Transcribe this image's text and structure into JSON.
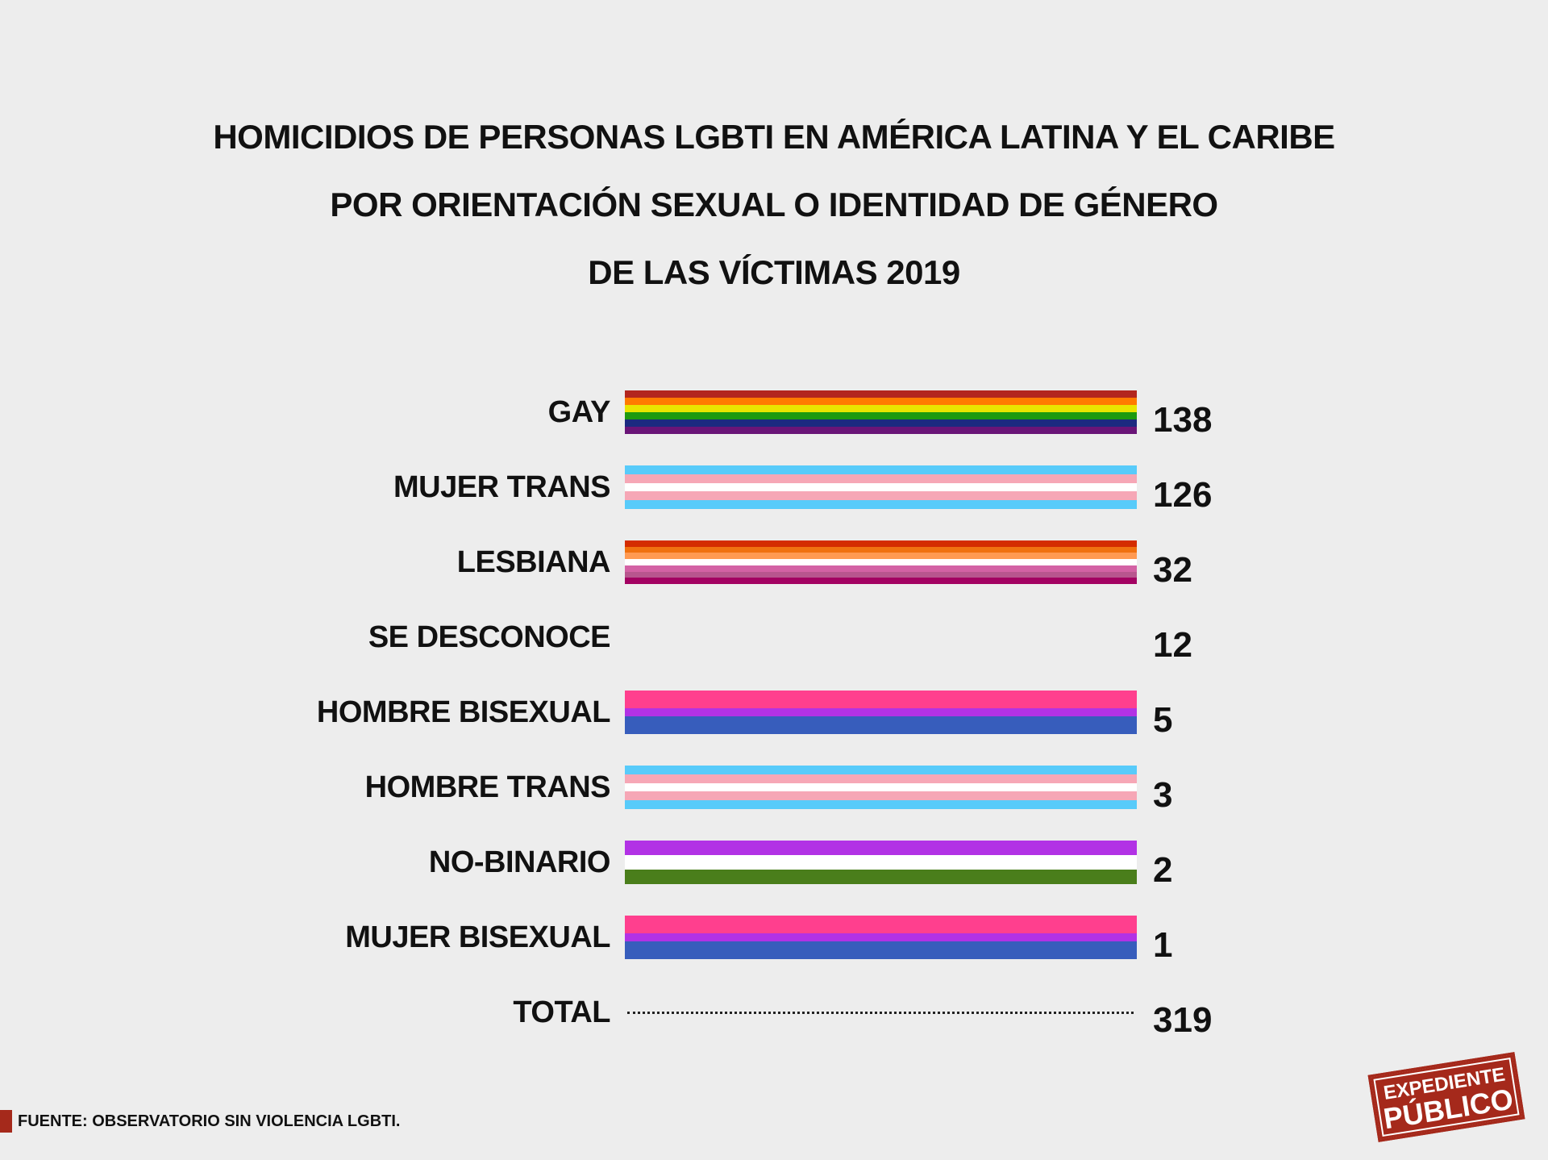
{
  "title": {
    "lines": [
      "HOMICIDIOS DE PERSONAS LGBTI EN AMÉRICA LATINA Y EL CARIBE",
      "POR ORIENTACIÓN SEXUAL O IDENTIDAD DE GÉNERO",
      "DE LAS VÍCTIMAS 2019"
    ]
  },
  "chart_data": {
    "type": "table",
    "title": "HOMICIDIOS DE PERSONAS LGBTI EN AMÉRICA LATINA Y EL CARIBE POR ORIENTACIÓN SEXUAL O IDENTIDAD DE GÉNERO DE LAS VÍCTIMAS 2019",
    "categories": [
      "GAY",
      "MUJER TRANS",
      "LESBIANA",
      "SE DESCONOCE",
      "HOMBRE BISEXUAL",
      "HOMBRE TRANS",
      "NO-BINARIO",
      "MUJER BISEXUAL"
    ],
    "values": [
      138,
      126,
      32,
      12,
      5,
      3,
      2,
      1
    ],
    "total_label": "TOTAL",
    "total": 319,
    "flag_stripes": [
      [
        "#b3261e",
        "#ff7b00",
        "#e9e500",
        "#1e9a10",
        "#1c2a80",
        "#6a1577"
      ],
      [
        "#58cbfa",
        "#f6a7b6",
        "#ffffff",
        "#f6a7b6",
        "#58cbfa"
      ],
      [
        "#d42c00",
        "#f07110",
        "#ff9a52",
        "#ffffff",
        "#d362a4",
        "#b8568e",
        "#a30262"
      ],
      [],
      [
        "#ff3f8e",
        "#ff3f8e",
        "#b232e5",
        "#375dbc",
        "#375dbc"
      ],
      [
        "#58cbfa",
        "#f6a7b6",
        "#ffffff",
        "#f6a7b6",
        "#58cbfa"
      ],
      [
        "#b232e5",
        "#ffffff",
        "#4a7e1b"
      ],
      [
        "#ff3f8e",
        "#ff3f8e",
        "#b232e5",
        "#375dbc",
        "#375dbc"
      ]
    ]
  },
  "footer": {
    "source": "FUENTE: OBSERVATORIO SIN VIOLENCIA LGBTI.",
    "accent": "#a5291b"
  },
  "logo": {
    "line1": "EXPEDIENTE",
    "line2": "PÚBLICO"
  }
}
